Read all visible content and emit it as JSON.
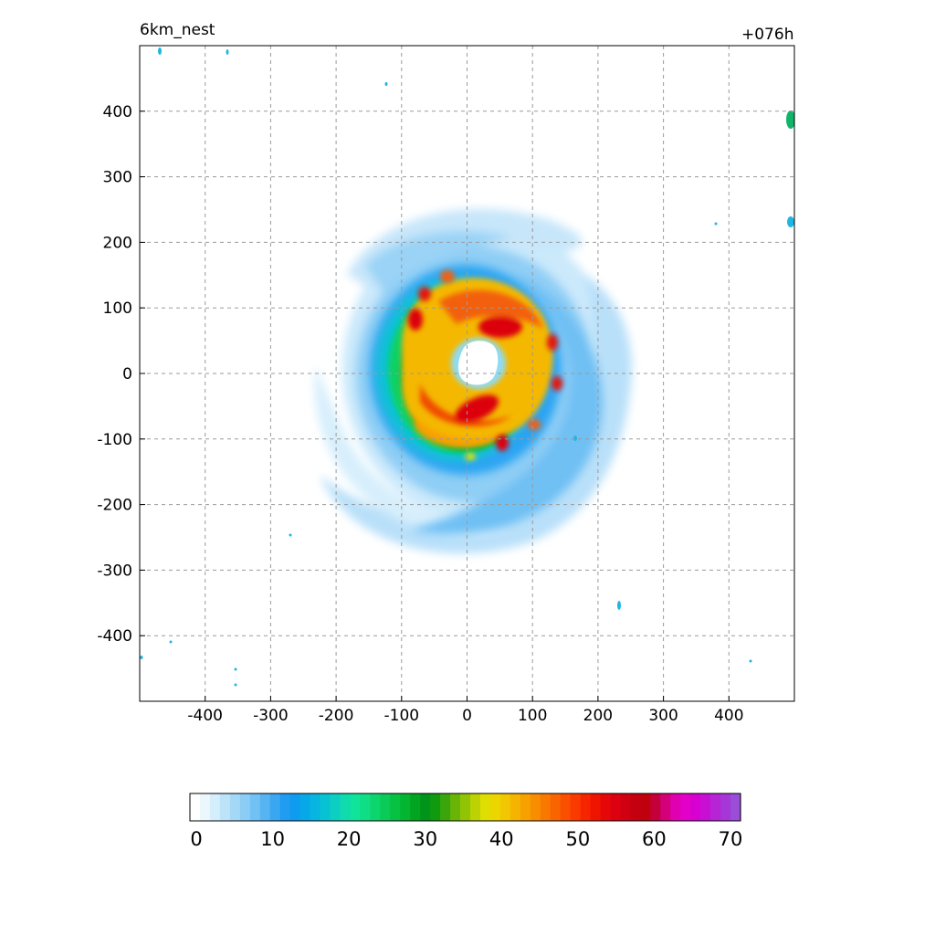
{
  "header": {
    "left_title": "6km_nest",
    "right_title": "+076h"
  },
  "chart_data": {
    "type": "heatmap",
    "title": "",
    "xlabel": "",
    "ylabel": "",
    "xlim": [
      -500,
      500
    ],
    "ylim": [
      -500,
      500
    ],
    "x_ticks": [
      -400,
      -300,
      -200,
      -100,
      0,
      100,
      200,
      300,
      400
    ],
    "y_ticks": [
      400,
      300,
      200,
      100,
      0,
      -100,
      -200,
      -300,
      -400
    ],
    "grid": true,
    "field": "tropical cyclone spiral with clear eye near (20, 15), eyewall and inner rainbands reaching 40-55, outer bands 5-25",
    "eye_center": [
      20,
      15
    ],
    "colorbar": {
      "min": 0,
      "max": 70,
      "tick_labels": [
        0,
        10,
        20,
        30,
        40,
        50,
        60,
        70
      ],
      "colors": [
        "#ffffff",
        "#ecf6fd",
        "#d4eefb",
        "#bde3f9",
        "#a4d8f7",
        "#8ccdf5",
        "#72c1f4",
        "#56b4f3",
        "#3aa7f2",
        "#209cf1",
        "#0e9cee",
        "#07a8e8",
        "#06b5e0",
        "#08c2d3",
        "#0ccfc2",
        "#0fdbaf",
        "#10e39a",
        "#0fde84",
        "#0dd56e",
        "#0acb58",
        "#06c142",
        "#03b530",
        "#01a520",
        "#00951a",
        "#0f9a10",
        "#3ba60b",
        "#68b508",
        "#92c406",
        "#bcd204",
        "#dede02",
        "#ecd600",
        "#f2c600",
        "#f5b400",
        "#f7a100",
        "#f88d00",
        "#f97900",
        "#fa6400",
        "#fb4f00",
        "#fb3a00",
        "#f72400",
        "#ef1400",
        "#e60808",
        "#dc0010",
        "#d00010",
        "#c40010",
        "#c0000c",
        "#c4003a",
        "#d3007a",
        "#e100b0",
        "#e300c8",
        "#d700d0",
        "#c710d4",
        "#b624d6",
        "#a636d8",
        "#9a4ed8"
      ]
    }
  }
}
